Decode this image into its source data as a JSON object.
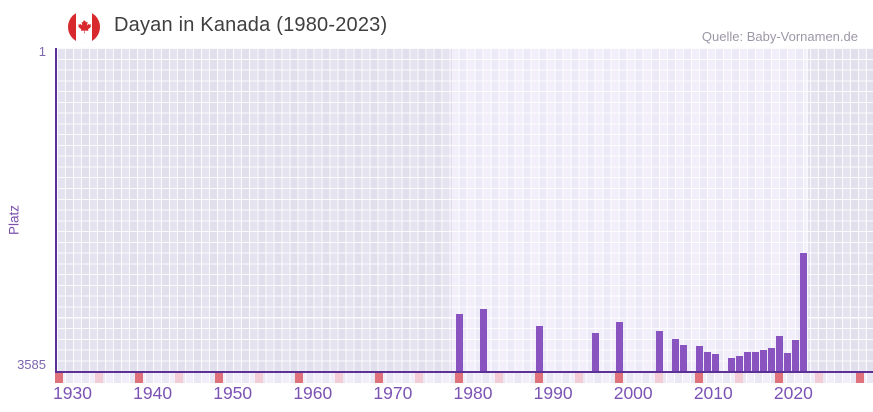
{
  "header": {
    "title": "Dayan in Kanada (1980-2023)",
    "source": "Quelle: Baby-Vornamen.de"
  },
  "chart_data": {
    "type": "bar",
    "title": "Dayan in Kanada (1980-2023)",
    "xlabel": "",
    "ylabel": "Platz",
    "y_axis": {
      "top_tick": "1",
      "bottom_tick": "3585",
      "min": 1,
      "max": 3585,
      "inverted": true
    },
    "x_tick_labels": [
      "1930",
      "1940",
      "1950",
      "1960",
      "1970",
      "1980",
      "1990",
      "2000",
      "2010",
      "2020"
    ],
    "x_range_years": [
      1928,
      2030
    ],
    "highlighted_range": {
      "from": 1980,
      "to": 2023
    },
    "decade_markers": {
      "red_decades_from": 1930,
      "red_decades_to": 2030,
      "pink_half_decades_from": 1935,
      "pink_half_decades_to": 2025
    },
    "grid": true,
    "legend": "none",
    "series": [
      {
        "name": "Platz",
        "points": [
          {
            "year": 1980,
            "rank": 2955
          },
          {
            "year": 1983,
            "rank": 2895
          },
          {
            "year": 1990,
            "rank": 3080
          },
          {
            "year": 1997,
            "rank": 3165
          },
          {
            "year": 2000,
            "rank": 3045
          },
          {
            "year": 2005,
            "rank": 3140
          },
          {
            "year": 2007,
            "rank": 3235
          },
          {
            "year": 2008,
            "rank": 3295
          },
          {
            "year": 2010,
            "rank": 3305
          },
          {
            "year": 2011,
            "rank": 3370
          },
          {
            "year": 2012,
            "rank": 3400
          },
          {
            "year": 2014,
            "rank": 3445
          },
          {
            "year": 2015,
            "rank": 3420
          },
          {
            "year": 2016,
            "rank": 3370
          },
          {
            "year": 2017,
            "rank": 3370
          },
          {
            "year": 2018,
            "rank": 3350
          },
          {
            "year": 2019,
            "rank": 3325
          },
          {
            "year": 2020,
            "rank": 3195
          },
          {
            "year": 2021,
            "rank": 3390
          },
          {
            "year": 2022,
            "rank": 3240
          },
          {
            "year": 2023,
            "rank": 2275
          }
        ]
      }
    ]
  },
  "colors": {
    "bar": "#8a54c0",
    "axis_line": "#5c3195",
    "x_tick_label": "#7c52b5",
    "y_tick_label": "#7d66ad",
    "plot_bg_outer": "#e4e1ee",
    "plot_bg_band": "#efecf9",
    "marker_red": "#e0717b",
    "marker_pink": "#f3ccd6",
    "title_text": "#3f3f3f",
    "source_text": "#9c97a6",
    "flag_red": "#d8292f"
  }
}
